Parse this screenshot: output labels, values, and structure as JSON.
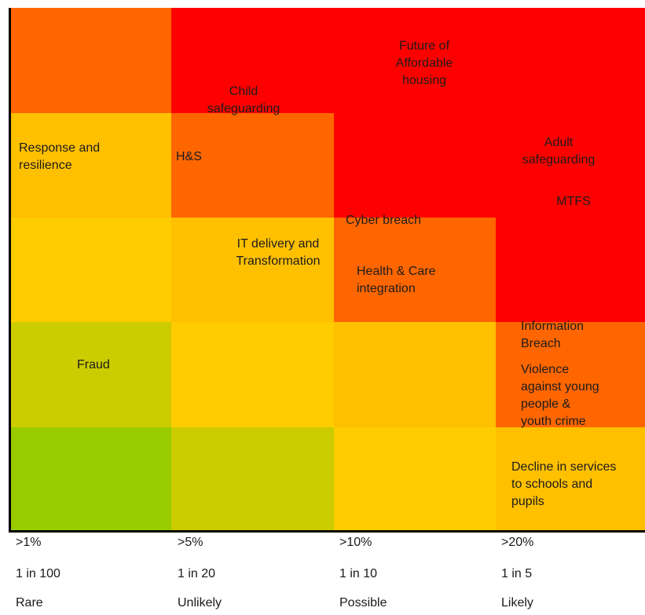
{
  "cell_colors": {
    "green": "#99cc00",
    "yellow_green": "#cccc00",
    "yellow": "#ffcc00",
    "amber": "#ffc000",
    "orange": "#ff6600",
    "red": "#ff0000"
  },
  "risks": {
    "future_affordable_housing": "Future of\nAffordable\nhousing",
    "child_safeguarding": "Child\nsafeguarding",
    "response_resilience": "Response  and\nresilience",
    "hs": "H&S",
    "adult_safeguarding": "Adult\nsafeguarding",
    "mtfs": "MTFS",
    "cyber_breach": "Cyber breach",
    "it_delivery": "IT delivery and\nTransformation",
    "health_care": "Health  & Care\nintegration",
    "information_breach": "Information\nBreach",
    "violence_young_people": "Violence\nagainst young\npeople &\nyouth crime",
    "fraud": "Fraud",
    "decline_services": "Decline in services\nto schools and\npupils"
  },
  "x_axis": {
    "columns": [
      {
        "pct": ">1%",
        "odds": "1 in 100",
        "word": "Rare"
      },
      {
        "pct": ">5%",
        "odds": "1 in 20",
        "word": "Unlikely"
      },
      {
        "pct": ">10%",
        "odds": "1 in 10",
        "word": "Possible"
      },
      {
        "pct": ">20%",
        "odds": "1 in 5",
        "word": "Likely"
      }
    ]
  }
}
